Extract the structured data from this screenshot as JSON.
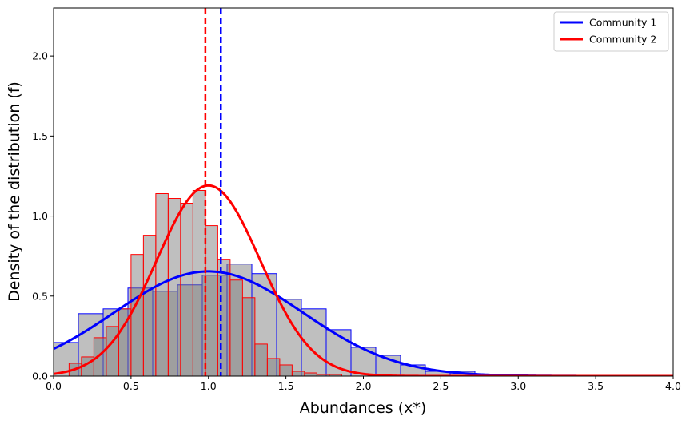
{
  "chart_data": {
    "type": "histogram",
    "title": "",
    "xlabel": "Abundances (x*)",
    "ylabel": "Density of the distribution (f)",
    "xlim": [
      0,
      4
    ],
    "ylim": [
      0,
      2.3
    ],
    "xticks": [
      "0.0",
      "0.5",
      "1.0",
      "1.5",
      "2.0",
      "2.5",
      "3.0",
      "3.5",
      "4.0"
    ],
    "yticks": [
      "0.0",
      "0.5",
      "1.0",
      "1.5",
      "2.0"
    ],
    "xtick_values": [
      0,
      0.5,
      1.0,
      1.5,
      2.0,
      2.5,
      3.0,
      3.5,
      4.0
    ],
    "ytick_values": [
      0,
      0.5,
      1.0,
      1.5,
      2.0
    ],
    "series": [
      {
        "name": "Community 1",
        "color": "#0000ff",
        "bin_edges": [
          0.0,
          0.16,
          0.32,
          0.48,
          0.64,
          0.8,
          0.96,
          1.12,
          1.28,
          1.44,
          1.6,
          1.76,
          1.92,
          2.08,
          2.24,
          2.4,
          2.56,
          2.72
        ],
        "densities": [
          0.21,
          0.39,
          0.42,
          0.55,
          0.53,
          0.57,
          0.63,
          0.7,
          0.64,
          0.48,
          0.42,
          0.29,
          0.18,
          0.13,
          0.07,
          0.03,
          0.03
        ],
        "fit_mean": 1.0,
        "fit_std": 0.61,
        "mean_line": 1.08
      },
      {
        "name": "Community 2",
        "color": "#ff0000",
        "bin_edges": [
          0.1,
          0.18,
          0.26,
          0.34,
          0.42,
          0.5,
          0.58,
          0.66,
          0.74,
          0.82,
          0.9,
          0.98,
          1.06,
          1.14,
          1.22,
          1.3,
          1.38,
          1.46,
          1.54,
          1.62,
          1.7,
          1.78,
          1.86
        ],
        "densities": [
          0.08,
          0.12,
          0.24,
          0.31,
          0.42,
          0.76,
          0.88,
          1.14,
          1.11,
          1.08,
          1.16,
          0.94,
          0.73,
          0.6,
          0.49,
          0.2,
          0.11,
          0.07,
          0.03,
          0.02,
          0.01,
          0.01
        ],
        "fit_mean": 1.0,
        "fit_std": 0.335,
        "mean_line": 0.98
      }
    ],
    "legend": {
      "position": "top-right",
      "entries": [
        "Community 1",
        "Community 2"
      ]
    }
  }
}
